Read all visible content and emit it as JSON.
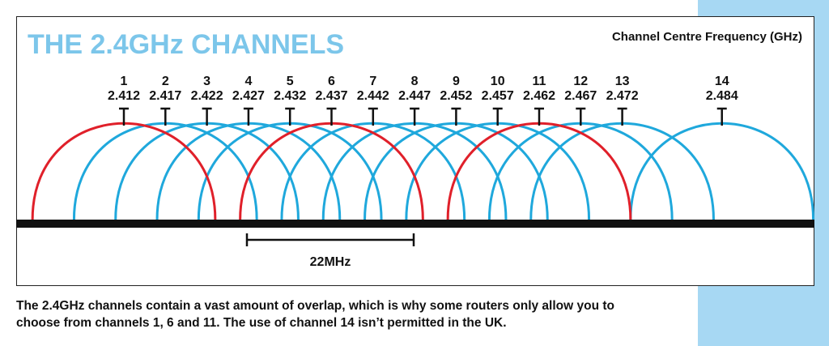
{
  "title": "THE 2.4GHz CHANNELS",
  "header_label": "Channel Centre Frequency (GHz)",
  "width_label": "22MHz",
  "caption_line1": "The 2.4GHz channels contain a vast amount of overlap, which is why some routers only allow you to",
  "caption_line2": "choose from channels 1, 6 and 11. The use of channel 14 isn’t permitted in the UK.",
  "colors": {
    "title": "#7cc6ea",
    "side_panel": "#a7d8f3",
    "arc_default": "#1fa8dc",
    "arc_highlight": "#e0202a",
    "baseline": "#111111",
    "text": "#111111"
  },
  "channels": [
    {
      "number": "1",
      "frequency": "2.412",
      "highlight": true
    },
    {
      "number": "2",
      "frequency": "2.417",
      "highlight": false
    },
    {
      "number": "3",
      "frequency": "2.422",
      "highlight": false
    },
    {
      "number": "4",
      "frequency": "2.427",
      "highlight": false
    },
    {
      "number": "5",
      "frequency": "2.432",
      "highlight": false
    },
    {
      "number": "6",
      "frequency": "2.437",
      "highlight": true
    },
    {
      "number": "7",
      "frequency": "2.442",
      "highlight": false
    },
    {
      "number": "8",
      "frequency": "2.447",
      "highlight": false
    },
    {
      "number": "9",
      "frequency": "2.452",
      "highlight": false
    },
    {
      "number": "10",
      "frequency": "2.457",
      "highlight": false
    },
    {
      "number": "11",
      "frequency": "2.462",
      "highlight": true
    },
    {
      "number": "12",
      "frequency": "2.467",
      "highlight": false
    },
    {
      "number": "13",
      "frequency": "2.472",
      "highlight": false
    },
    {
      "number": "14",
      "frequency": "2.484",
      "highlight": false
    }
  ],
  "channel_width_mhz": 22
}
